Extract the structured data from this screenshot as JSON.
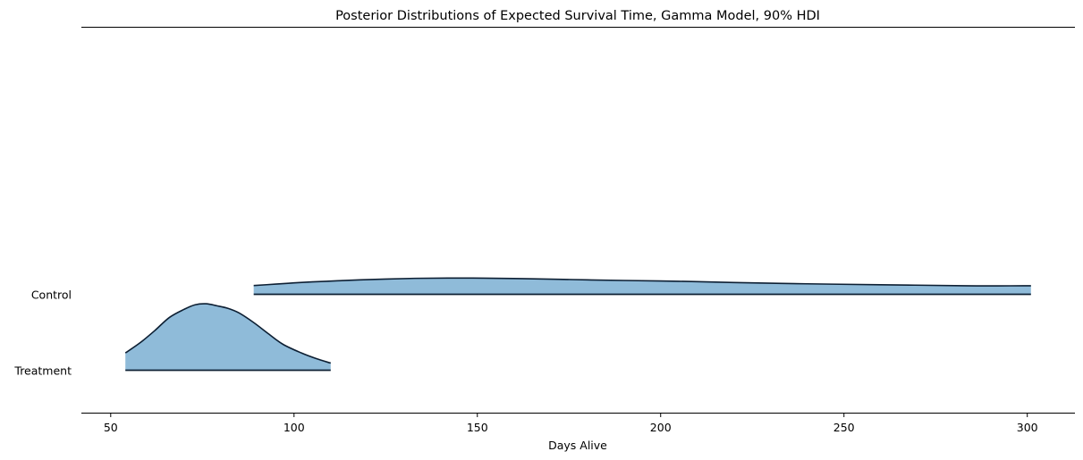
{
  "chart_data": {
    "type": "ridgeline",
    "title": "Posterior Distributions of Expected Survival Time, Gamma Model, 90% HDI",
    "xlabel": "Days Alive",
    "ylabel": "",
    "xlim": [
      42,
      313
    ],
    "xticks": [
      50,
      100,
      150,
      200,
      250,
      300
    ],
    "grid": false,
    "fill_color": "#1f77b4",
    "fill_opacity": 0.5,
    "line_color": "#0d1f33",
    "series": [
      {
        "name": "Control",
        "hdi": [
          89,
          301
        ],
        "x": [
          89,
          95,
          100,
          105,
          112,
          118,
          125,
          133,
          142,
          152,
          162,
          172,
          180,
          190,
          205,
          220,
          240,
          260,
          283,
          292,
          301
        ],
        "density": [
          0.16,
          0.3,
          0.42,
          0.52,
          0.63,
          0.72,
          0.8,
          0.87,
          0.9,
          0.89,
          0.84,
          0.78,
          0.72,
          0.66,
          0.58,
          0.46,
          0.33,
          0.24,
          0.14,
          0.13,
          0.14
        ]
      },
      {
        "name": "Treatment",
        "hdi": [
          54,
          110
        ],
        "x": [
          54,
          58,
          62,
          66,
          70,
          73,
          76,
          79,
          82,
          85,
          89,
          93,
          97,
          102,
          106,
          110
        ],
        "density": [
          1.0,
          2.0,
          3.2,
          4.5,
          5.3,
          5.75,
          5.85,
          5.65,
          5.4,
          4.95,
          4.0,
          2.9,
          1.85,
          1.0,
          0.45,
          0.0
        ]
      }
    ]
  }
}
